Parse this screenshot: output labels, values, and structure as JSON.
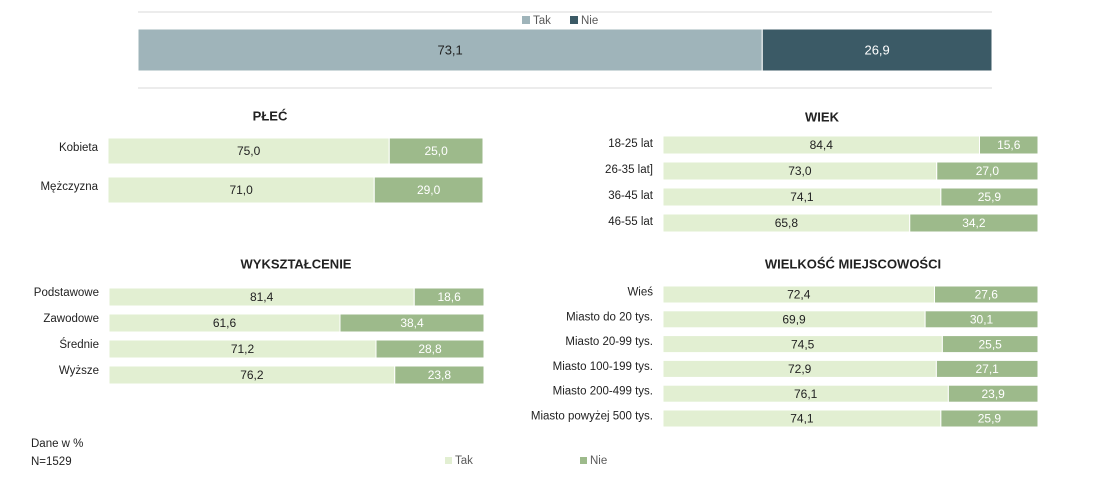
{
  "chart_data": [
    {
      "type": "stacked-bar",
      "categories": [
        null
      ],
      "xlim": [
        0,
        100
      ],
      "series": [
        {
          "name": "Tak",
          "color": "#9fb4ba",
          "values": [
            73.1
          ],
          "value_labels": [
            "73,1"
          ]
        },
        {
          "name": "Nie",
          "color": "#3b5a66",
          "values": [
            26.9
          ],
          "value_labels": [
            "26,9"
          ]
        }
      ]
    },
    {
      "type": "stacked-bar",
      "title": "PŁEĆ",
      "categories": [
        "Kobieta",
        "Mężczyzna"
      ],
      "xlim": [
        0,
        100
      ],
      "series": [
        {
          "name": "Tak",
          "color": "#e2efd2",
          "values": [
            75.0,
            71.0
          ],
          "value_labels": [
            "75,0",
            "71,0"
          ]
        },
        {
          "name": "Nie",
          "color": "#9dba8b",
          "values": [
            25.0,
            29.0
          ],
          "value_labels": [
            "25,0",
            "29,0"
          ]
        }
      ]
    },
    {
      "type": "stacked-bar",
      "title": "WIEK",
      "categories": [
        "18-25 lat",
        "26-35 lat]",
        "36-45 lat",
        "46-55 lat"
      ],
      "xlim": [
        0,
        100
      ],
      "series": [
        {
          "name": "Tak",
          "color": "#e2efd2",
          "values": [
            84.4,
            73.0,
            74.1,
            65.8
          ],
          "value_labels": [
            "84,4",
            "73,0",
            "74,1",
            "65,8"
          ]
        },
        {
          "name": "Nie",
          "color": "#9dba8b",
          "values": [
            15.6,
            27.0,
            25.9,
            34.2
          ],
          "value_labels": [
            "15,6",
            "27,0",
            "25,9",
            "34,2"
          ]
        }
      ]
    },
    {
      "type": "stacked-bar",
      "title": "WYKSZTAŁCENIE",
      "categories": [
        "Podstawowe",
        "Zawodowe",
        "Średnie",
        "Wyższe"
      ],
      "xlim": [
        0,
        100
      ],
      "series": [
        {
          "name": "Tak",
          "color": "#e2efd2",
          "values": [
            81.4,
            61.6,
            71.2,
            76.2
          ],
          "value_labels": [
            "81,4",
            "61,6",
            "71,2",
            "76,2"
          ]
        },
        {
          "name": "Nie",
          "color": "#9dba8b",
          "values": [
            18.6,
            38.4,
            28.8,
            23.8
          ],
          "value_labels": [
            "18,6",
            "38,4",
            "28,8",
            "23,8"
          ]
        }
      ]
    },
    {
      "type": "stacked-bar",
      "title": "WIELKOŚĆ MIEJSCOWOŚCI",
      "categories": [
        "Wieś",
        "Miasto do 20 tys.",
        "Miasto 20-99 tys.",
        "Miasto 100-199 tys.",
        "Miasto 200-499 tys.",
        "Miasto powyżej 500 tys."
      ],
      "xlim": [
        0,
        100
      ],
      "series": [
        {
          "name": "Tak",
          "color": "#e2efd2",
          "values": [
            72.4,
            69.9,
            74.5,
            72.9,
            76.1,
            74.1
          ],
          "value_labels": [
            "72,4",
            "69,9",
            "74,5",
            "72,9",
            "76,1",
            "74,1"
          ]
        },
        {
          "name": "Nie",
          "color": "#9dba8b",
          "values": [
            27.6,
            30.1,
            25.5,
            27.1,
            23.9,
            25.9
          ],
          "value_labels": [
            "27,6",
            "30,1",
            "25,5",
            "27,1",
            "23,9",
            "25,9"
          ]
        }
      ]
    }
  ],
  "notes": [
    "Dane w %",
    "N=1529"
  ]
}
